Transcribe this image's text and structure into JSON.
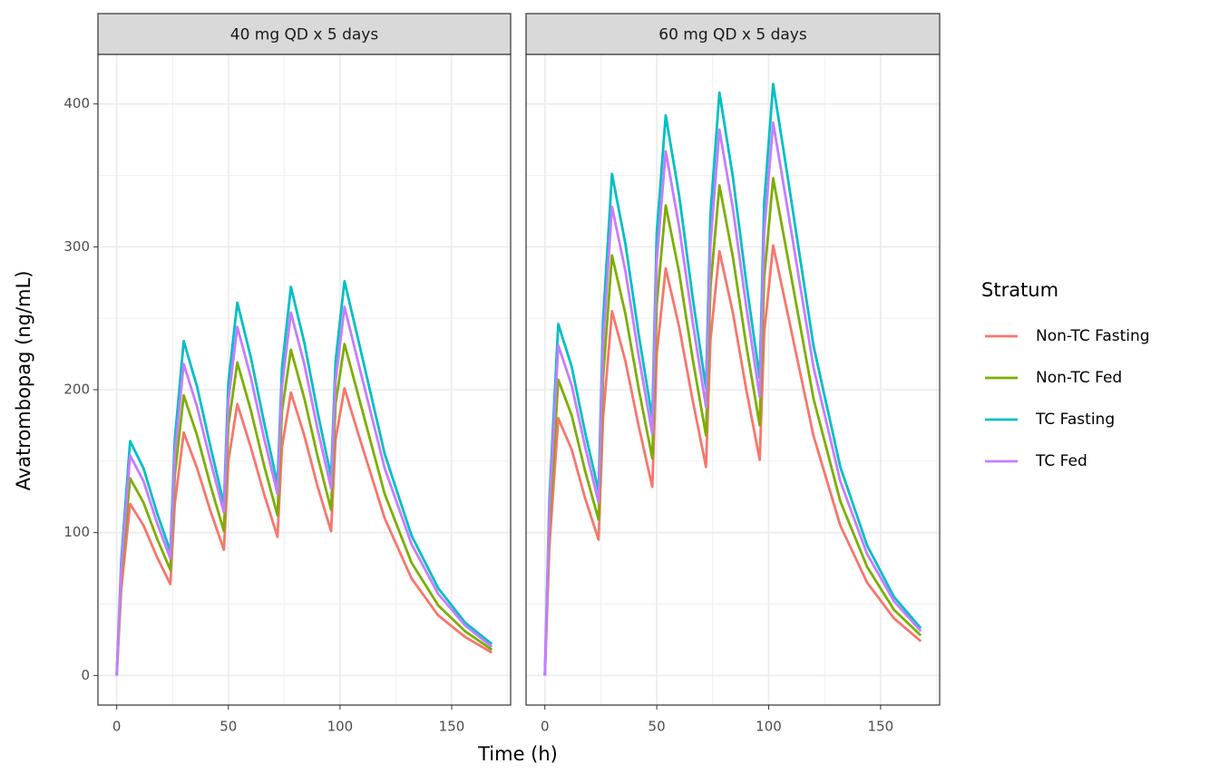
{
  "x_label": "Time (h)",
  "y_label": "Avatrombopag (ng/mL)",
  "legend": {
    "title": "Stratum",
    "position": "right"
  },
  "chart_data": [
    {
      "type": "line",
      "title": "40 mg QD x 5 days",
      "x": [
        0,
        2,
        6,
        12,
        18,
        24,
        26,
        30,
        36,
        42,
        48,
        50,
        54,
        60,
        66,
        72,
        74,
        78,
        84,
        90,
        96,
        98,
        102,
        108,
        120,
        132,
        144,
        156,
        168
      ],
      "series": [
        {
          "name": "Non-TC Fasting",
          "color": "#F8766D",
          "values": [
            0,
            60,
            120,
            105,
            83,
            64,
            120,
            170,
            145,
            115,
            88,
            150,
            190,
            160,
            127,
            97,
            160,
            198,
            168,
            132,
            101,
            165,
            201,
            170,
            110,
            68,
            42,
            27,
            16
          ]
        },
        {
          "name": "Non-TC Fed",
          "color": "#7CAE00",
          "values": [
            0,
            70,
            138,
            121,
            96,
            74,
            140,
            196,
            168,
            133,
            101,
            175,
            219,
            186,
            147,
            112,
            185,
            228,
            194,
            153,
            116,
            190,
            232,
            197,
            127,
            79,
            49,
            31,
            18
          ]
        },
        {
          "name": "TC Fasting",
          "color": "#00BFC4",
          "values": [
            0,
            80,
            164,
            145,
            114,
            87,
            165,
            234,
            202,
            160,
            120,
            205,
            261,
            223,
            177,
            134,
            215,
            272,
            233,
            184,
            139,
            220,
            276,
            236,
            155,
            98,
            61,
            37,
            22
          ]
        },
        {
          "name": "TC Fed",
          "color": "#C77CFF",
          "values": [
            0,
            75,
            154,
            136,
            107,
            82,
            155,
            218,
            188,
            150,
            114,
            192,
            244,
            209,
            166,
            127,
            202,
            254,
            218,
            172,
            131,
            206,
            258,
            220,
            145,
            92,
            57,
            35,
            20
          ]
        }
      ],
      "xlim": [
        -8.4,
        176.4
      ],
      "ylim": [
        -20.7,
        434.7
      ],
      "xticks": [
        0,
        50,
        100,
        150
      ],
      "yticks": [
        0,
        100,
        200,
        300,
        400
      ],
      "grid": true
    },
    {
      "type": "line",
      "title": "60 mg QD x 5 days",
      "x": [
        0,
        2,
        6,
        12,
        18,
        24,
        26,
        30,
        36,
        42,
        48,
        50,
        54,
        60,
        66,
        72,
        74,
        78,
        84,
        90,
        96,
        98,
        102,
        108,
        120,
        132,
        144,
        156,
        168
      ],
      "series": [
        {
          "name": "Non-TC Fasting",
          "color": "#F8766D",
          "values": [
            0,
            90,
            180,
            158,
            124,
            95,
            180,
            255,
            220,
            174,
            132,
            225,
            285,
            244,
            193,
            146,
            235,
            297,
            254,
            200,
            151,
            240,
            301,
            257,
            168,
            105,
            65,
            40,
            24
          ]
        },
        {
          "name": "Non-TC Fed",
          "color": "#7CAE00",
          "values": [
            0,
            104,
            207,
            182,
            143,
            109,
            208,
            294,
            253,
            200,
            152,
            260,
            329,
            282,
            222,
            168,
            272,
            343,
            293,
            231,
            175,
            278,
            348,
            297,
            194,
            122,
            76,
            46,
            28
          ]
        },
        {
          "name": "TC Fasting",
          "color": "#00BFC4",
          "values": [
            0,
            123,
            246,
            216,
            170,
            129,
            248,
            351,
            302,
            238,
            180,
            310,
            392,
            336,
            265,
            201,
            323,
            408,
            349,
            275,
            208,
            331,
            414,
            354,
            231,
            146,
            91,
            55,
            33
          ]
        },
        {
          "name": "TC Fed",
          "color": "#C77CFF",
          "values": [
            0,
            116,
            231,
            203,
            160,
            121,
            232,
            328,
            283,
            223,
            169,
            290,
            367,
            314,
            248,
            188,
            302,
            382,
            327,
            258,
            195,
            310,
            387,
            331,
            216,
            136,
            85,
            52,
            31
          ]
        }
      ],
      "xlim": [
        -8.4,
        176.4
      ],
      "ylim": [
        -20.7,
        434.7
      ],
      "xticks": [
        0,
        50,
        100,
        150
      ],
      "yticks": [
        0,
        100,
        200,
        300,
        400
      ],
      "grid": true
    }
  ]
}
